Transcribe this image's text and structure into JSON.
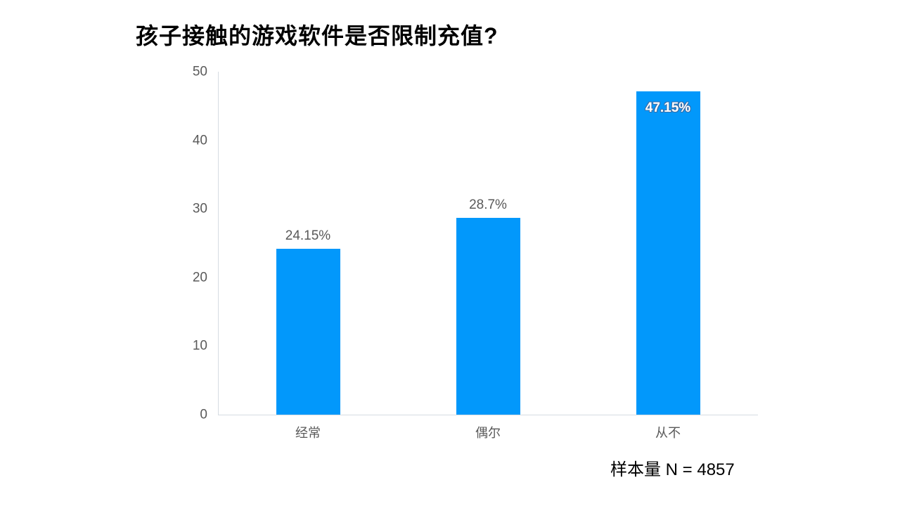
{
  "title": "孩子接触的游戏软件是否限制充值?",
  "sample_note": "样本量 N = 4857",
  "chart_data": {
    "type": "bar",
    "title": "孩子接触的游戏软件是否限制充值?",
    "categories": [
      "经常",
      "偶尔",
      "从不"
    ],
    "values": [
      24.15,
      28.7,
      47.15
    ],
    "data_labels": [
      "24.15%",
      "28.7%",
      "47.15%"
    ],
    "label_positions": [
      "above",
      "above",
      "inside"
    ],
    "xlabel": "",
    "ylabel": "",
    "yticks": [
      0,
      10,
      20,
      30,
      40,
      50
    ],
    "ylim": [
      0,
      50
    ],
    "grid": false,
    "legend": false,
    "bar_color": "#0298fb",
    "tick_color": "#5a5a5a",
    "axis_line_color": "#d6dce2",
    "annotation": "样本量 N = 4857"
  }
}
